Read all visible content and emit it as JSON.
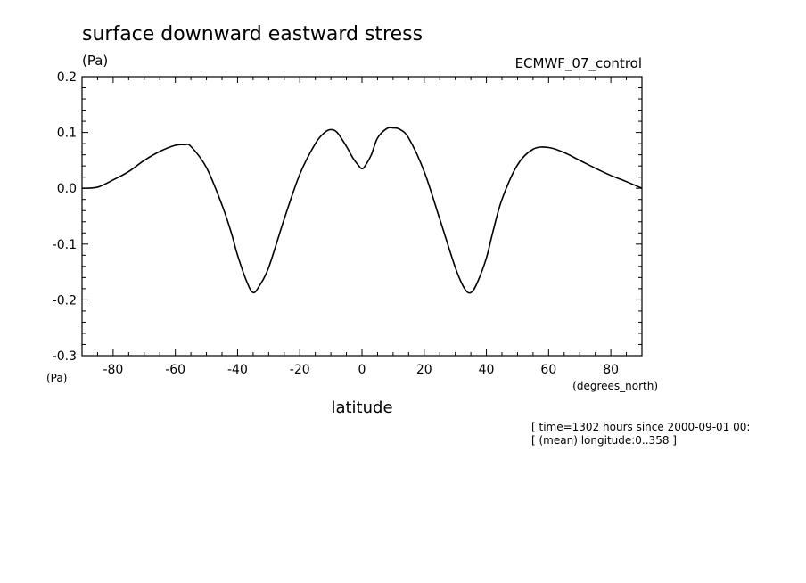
{
  "chart_data": {
    "type": "line",
    "title": "surface downward eastward stress",
    "ylabel_units": "(Pa)",
    "ytick_units": "(Pa)",
    "dataset_label": "ECMWF_07_control",
    "xlabel": "latitude",
    "xlabel_units": "(degrees_north)",
    "xlim": [
      -90,
      90
    ],
    "ylim": [
      -0.3,
      0.2
    ],
    "xticks": [
      "-80",
      "-60",
      "-40",
      "-20",
      "0",
      "20",
      "40",
      "60",
      "80"
    ],
    "yticks": [
      "0.2",
      "0.1",
      "0.0",
      "-0.1",
      "-0.2",
      "-0.3"
    ],
    "grid": false,
    "info_lines": [
      "[ time=1302 hours since 2000-09-01 00:",
      "[ (mean) longitude:0..358 ]"
    ],
    "series": [
      {
        "x": [
          -90,
          -85,
          -80,
          -75,
          -70,
          -65,
          -60,
          -57,
          -55,
          -50,
          -45,
          -42,
          -40,
          -37,
          -35,
          -33,
          -30,
          -25,
          -20,
          -15,
          -12,
          -10,
          -8,
          -5,
          -3,
          -1,
          0,
          1,
          3,
          5,
          8,
          10,
          12,
          15,
          20,
          25,
          30,
          33,
          35,
          37,
          40,
          42,
          45,
          50,
          55,
          60,
          65,
          70,
          75,
          80,
          85,
          90
        ],
        "y": [
          0.0,
          0.002,
          0.015,
          0.03,
          0.05,
          0.066,
          0.077,
          0.078,
          0.075,
          0.037,
          -0.03,
          -0.08,
          -0.12,
          -0.168,
          -0.187,
          -0.175,
          -0.142,
          -0.055,
          0.025,
          0.08,
          0.1,
          0.105,
          0.1,
          0.075,
          0.055,
          0.04,
          0.035,
          0.04,
          0.06,
          0.09,
          0.107,
          0.108,
          0.106,
          0.09,
          0.03,
          -0.055,
          -0.142,
          -0.18,
          -0.187,
          -0.17,
          -0.125,
          -0.08,
          -0.02,
          0.042,
          0.07,
          0.073,
          0.064,
          0.05,
          0.036,
          0.023,
          0.012,
          0.0
        ]
      }
    ]
  }
}
